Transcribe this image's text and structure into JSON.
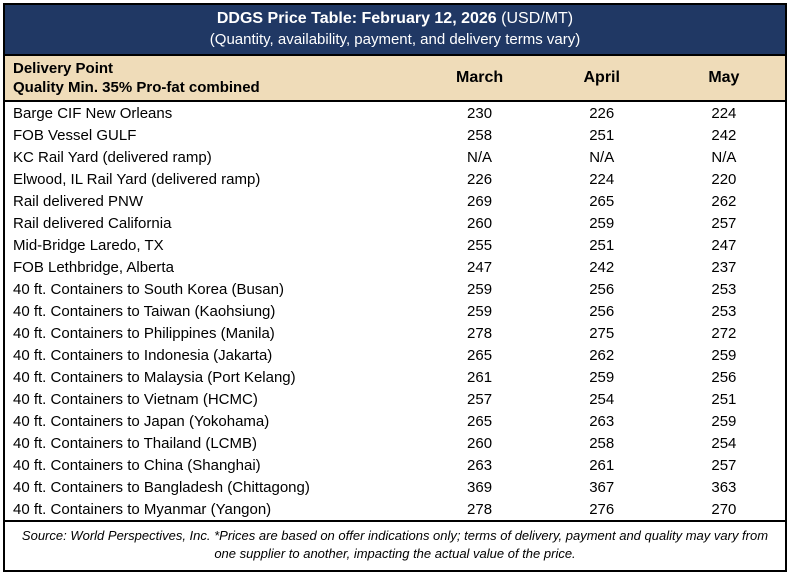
{
  "header": {
    "title": "DDGS Price Table: February 12, 2026",
    "unit": "(USD/MT)",
    "subtitle": "(Quantity, availability, payment, and delivery terms vary)"
  },
  "table": {
    "header_line1": "Delivery Point",
    "header_line2": "Quality Min. 35% Pro-fat combined",
    "months": [
      "March",
      "April",
      "May"
    ],
    "rows": [
      {
        "point": "Barge CIF New Orleans",
        "march": "230",
        "april": "226",
        "may": "224"
      },
      {
        "point": "FOB Vessel GULF",
        "march": "258",
        "april": "251",
        "may": "242"
      },
      {
        "point": "KC Rail Yard (delivered ramp)",
        "march": "N/A",
        "april": "N/A",
        "may": "N/A"
      },
      {
        "point": "Elwood, IL Rail Yard (delivered ramp)",
        "march": "226",
        "april": "224",
        "may": "220"
      },
      {
        "point": "Rail delivered PNW",
        "march": "269",
        "april": "265",
        "may": "262"
      },
      {
        "point": "Rail delivered California",
        "march": "260",
        "april": "259",
        "may": "257"
      },
      {
        "point": "Mid-Bridge Laredo, TX",
        "march": "255",
        "april": "251",
        "may": "247"
      },
      {
        "point": "FOB Lethbridge, Alberta",
        "march": "247",
        "april": "242",
        "may": "237"
      },
      {
        "point": "40 ft. Containers to South Korea (Busan)",
        "march": "259",
        "april": "256",
        "may": "253"
      },
      {
        "point": "40 ft. Containers to Taiwan (Kaohsiung)",
        "march": "259",
        "april": "256",
        "may": "253"
      },
      {
        "point": "40 ft. Containers to Philippines (Manila)",
        "march": "278",
        "april": "275",
        "may": "272"
      },
      {
        "point": "40 ft. Containers to Indonesia (Jakarta)",
        "march": "265",
        "april": "262",
        "may": "259"
      },
      {
        "point": "40 ft. Containers to Malaysia (Port Kelang)",
        "march": "261",
        "april": "259",
        "may": "256"
      },
      {
        "point": "40 ft. Containers to Vietnam (HCMC)",
        "march": "257",
        "april": "254",
        "may": "251"
      },
      {
        "point": "40 ft. Containers to Japan (Yokohama)",
        "march": "265",
        "april": "263",
        "may": "259"
      },
      {
        "point": "40 ft. Containers to Thailand (LCMB)",
        "march": "260",
        "april": "258",
        "may": "254"
      },
      {
        "point": "40 ft. Containers to China (Shanghai)",
        "march": "263",
        "april": "261",
        "may": "257"
      },
      {
        "point": "40 ft. Containers to Bangladesh (Chittagong)",
        "march": "369",
        "april": "367",
        "may": "363"
      },
      {
        "point": "40 ft. Containers to Myanmar (Yangon)",
        "march": "278",
        "april": "276",
        "may": "270"
      }
    ]
  },
  "footer": {
    "text": "Source: World Perspectives, Inc. *Prices are based on offer indications only; terms of delivery, payment and quality may vary from one supplier to another, impacting the actual value of the price.",
    "colors": {
      "navy": "#203864",
      "tan": "#EFDCB9"
    }
  }
}
